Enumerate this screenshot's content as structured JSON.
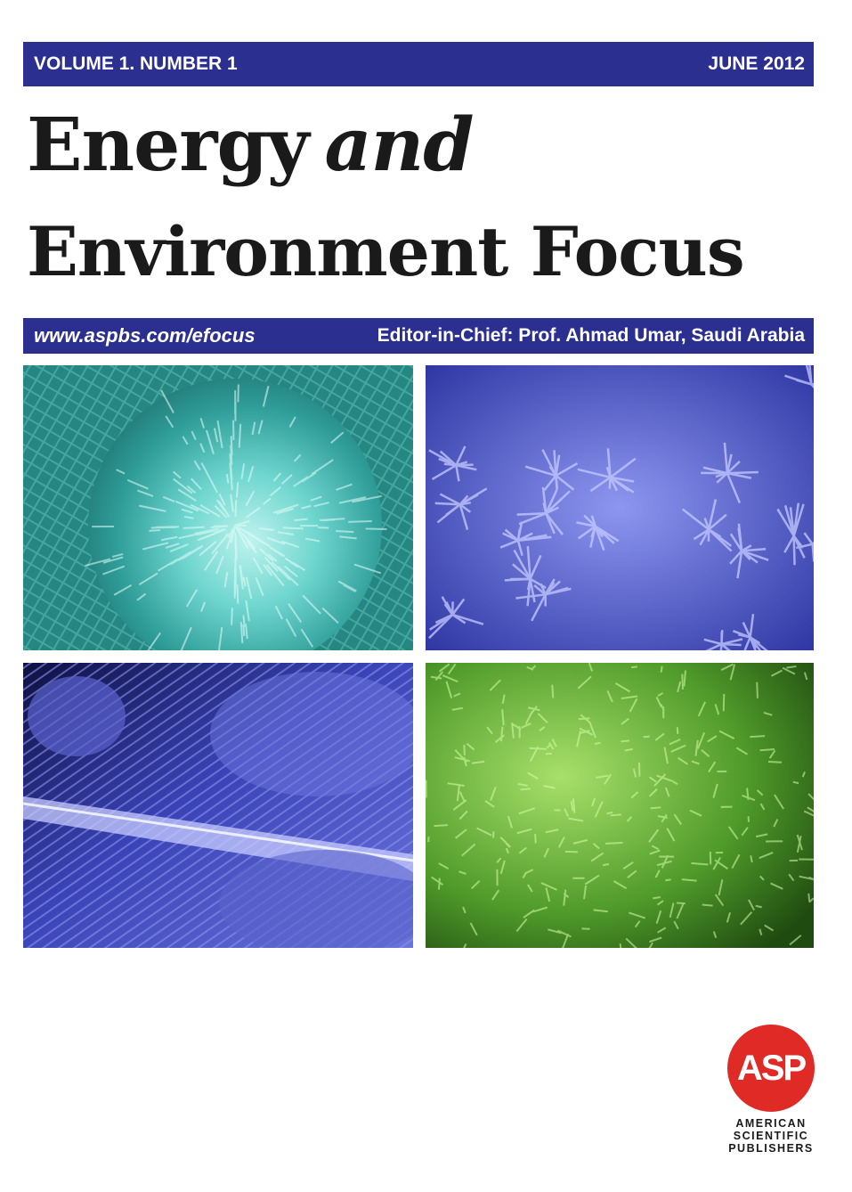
{
  "header": {
    "volume": "VOLUME 1. NUMBER 1",
    "date": "JUNE 2012"
  },
  "title": {
    "word1": "Energy",
    "word2": "and",
    "line2": "Environment Focus"
  },
  "subheader": {
    "url": "www.aspbs.com/efocus",
    "editor": "Editor-in-Chief: Prof. Ahmad Umar, Saudi Arabia"
  },
  "images": [
    {
      "name": "cyan-nanostructure",
      "color": "#3fb8b4"
    },
    {
      "name": "blue-nanoflowers",
      "color": "#4a57c8"
    },
    {
      "name": "blue-nanorod-bundle",
      "color": "#3b43b0"
    },
    {
      "name": "green-nanosheets",
      "color": "#5aa42e"
    }
  ],
  "publisher": {
    "logo_text": "ASP",
    "line1": "AMERICAN",
    "line2": "SCIENTIFIC",
    "line3": "PUBLISHERS",
    "logo_color": "#e02a26"
  },
  "colors": {
    "band": "#2b2f8f"
  }
}
